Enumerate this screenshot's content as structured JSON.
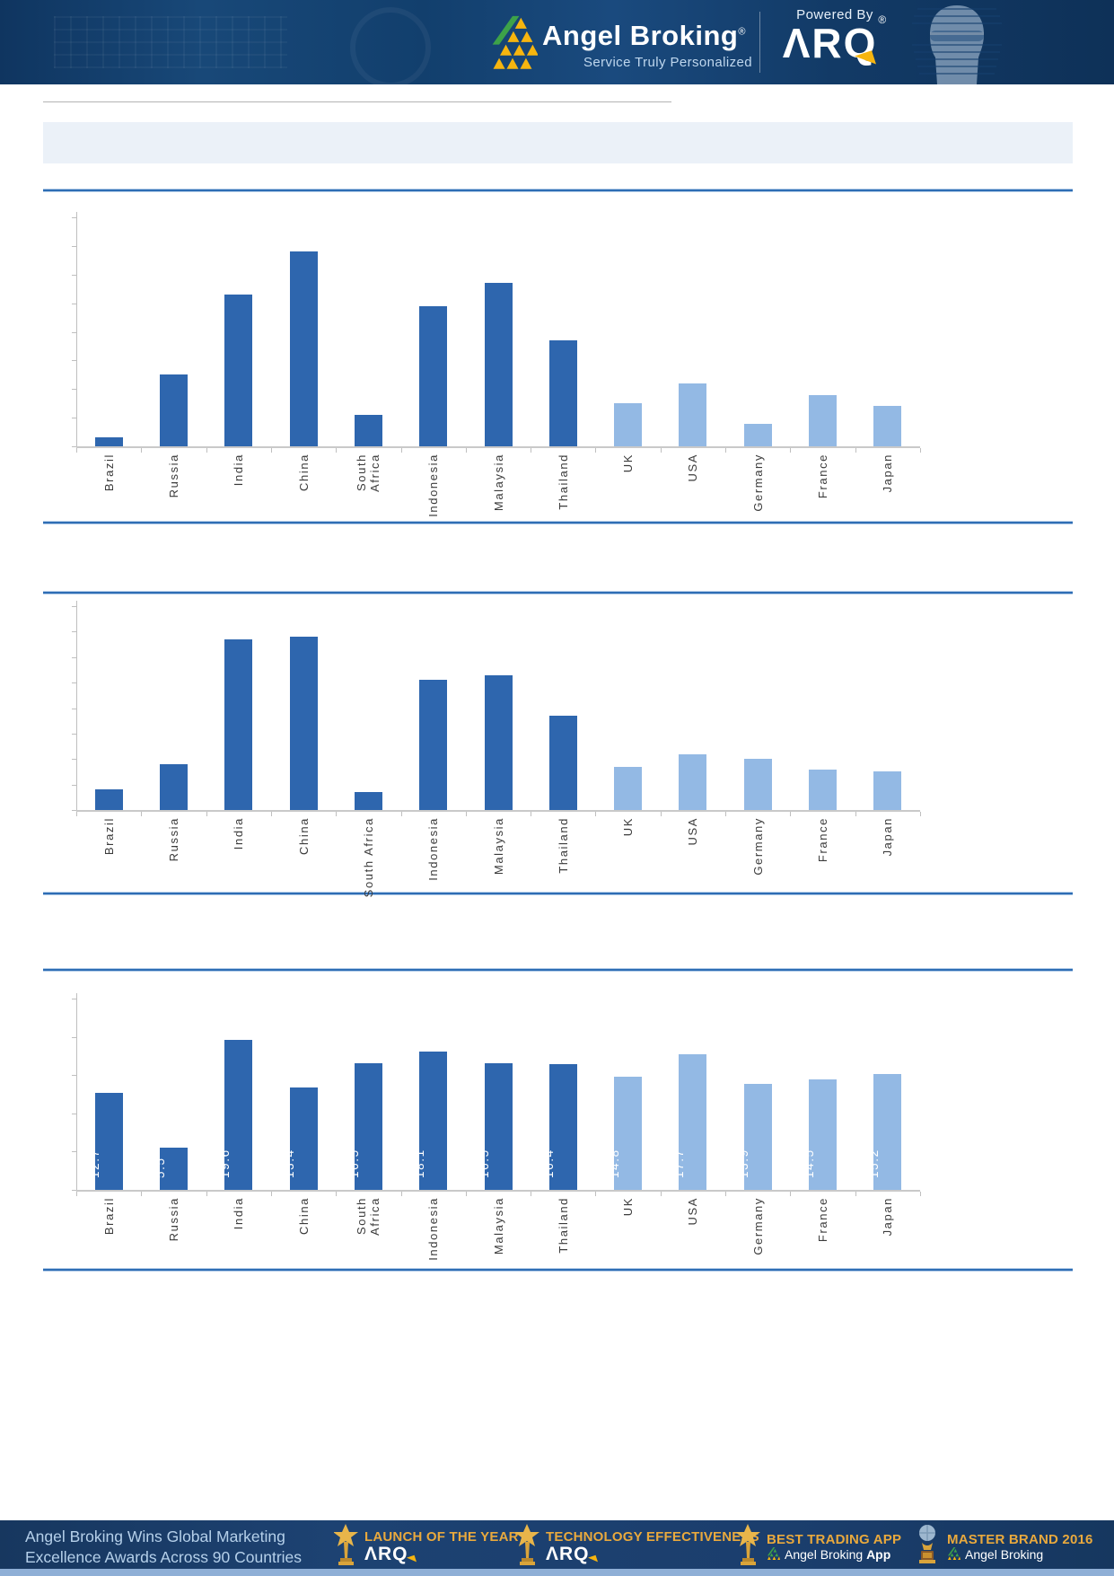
{
  "header": {
    "brand": "Angel Broking",
    "brand_reg": "®",
    "tagline": "Service Truly Personalized",
    "powered_by": "Powered By",
    "arq_logo": "ΛRQ",
    "arq_reg": "®"
  },
  "title_box": {
    "text": ""
  },
  "chart_data": [
    {
      "id": "bar-chart-top",
      "type": "bar",
      "title": "",
      "xlabel": "",
      "ylabel": "",
      "categories": [
        "Brazil",
        "Russia",
        "India",
        "China",
        "South\nAfrica",
        "Indonesia",
        "Malaysia",
        "Thailand",
        "UK",
        "USA",
        "Germany",
        "France",
        "Japan"
      ],
      "values": [
        0.3,
        2.5,
        5.3,
        6.8,
        1.1,
        4.9,
        5.7,
        3.7,
        1.5,
        2.2,
        0.8,
        1.8,
        1.4
      ],
      "ylim": [
        0,
        8
      ],
      "ytick_step": 1,
      "ytick_labels_shown": false,
      "data_labels": false,
      "grid": false,
      "legend": false,
      "emerging_count": 8
    },
    {
      "id": "bar-chart-middle",
      "type": "bar",
      "title": "",
      "xlabel": "",
      "ylabel": "",
      "categories": [
        "Brazil",
        "Russia",
        "India",
        "China",
        "South Africa",
        "Indonesia",
        "Malaysia",
        "Thailand",
        "UK",
        "USA",
        "Germany",
        "France",
        "Japan"
      ],
      "values": [
        0.8,
        1.8,
        6.7,
        6.8,
        0.7,
        5.1,
        5.3,
        3.7,
        1.7,
        2.2,
        2.0,
        1.6,
        1.5
      ],
      "ylim": [
        0,
        8
      ],
      "ytick_step": 1,
      "ytick_labels_shown": false,
      "data_labels": false,
      "grid": false,
      "legend": false,
      "emerging_count": 8
    },
    {
      "id": "bar-chart-bottom",
      "type": "bar",
      "title": "",
      "xlabel": "",
      "ylabel": "",
      "categories": [
        "Brazil",
        "Russia",
        "India",
        "China",
        "South\nAfrica",
        "Indonesia",
        "Malaysia",
        "Thailand",
        "UK",
        "USA",
        "Germany",
        "France",
        "Japan"
      ],
      "values": [
        12.7,
        5.5,
        19.6,
        13.4,
        16.5,
        18.1,
        16.5,
        16.4,
        14.8,
        17.7,
        13.9,
        14.5,
        15.2
      ],
      "ylim": [
        0,
        25
      ],
      "ytick_step": 5,
      "ytick_labels_shown": false,
      "data_labels": true,
      "grid": false,
      "legend": false,
      "emerging_count": 8
    }
  ],
  "footer": {
    "headline_line1": "Angel Broking Wins Global Marketing",
    "headline_line2": "Excellence Awards Across 90 Countries",
    "awards": [
      {
        "icon": "star-trophy-icon",
        "title": "LAUNCH OF THE YEAR",
        "brand": "ΛRQ",
        "brand_type": "arq"
      },
      {
        "icon": "star-trophy-icon",
        "title": "TECHNOLOGY EFFECTIVENESS",
        "brand": "ΛRQ",
        "brand_type": "arq"
      },
      {
        "icon": "star-trophy-icon",
        "title": "BEST TRADING APP",
        "brand": "Angel Broking",
        "brand_bold": "App",
        "brand_type": "angel"
      },
      {
        "icon": "globe-trophy-icon",
        "title": "MASTER BRAND 2016",
        "brand": "Angel Broking",
        "brand_bold": "",
        "brand_type": "angel"
      }
    ]
  },
  "colors": {
    "bar_emerging": "#2e66ae",
    "bar_developed": "#93b9e4",
    "divider_blue": "#2e6db4",
    "header_navy": "#16406f",
    "footer_navy": "#1b3e6d",
    "gold": "#e9a93d",
    "title_box_fill": "#ebf1f8",
    "axis_gray": "#bfbfbf"
  }
}
